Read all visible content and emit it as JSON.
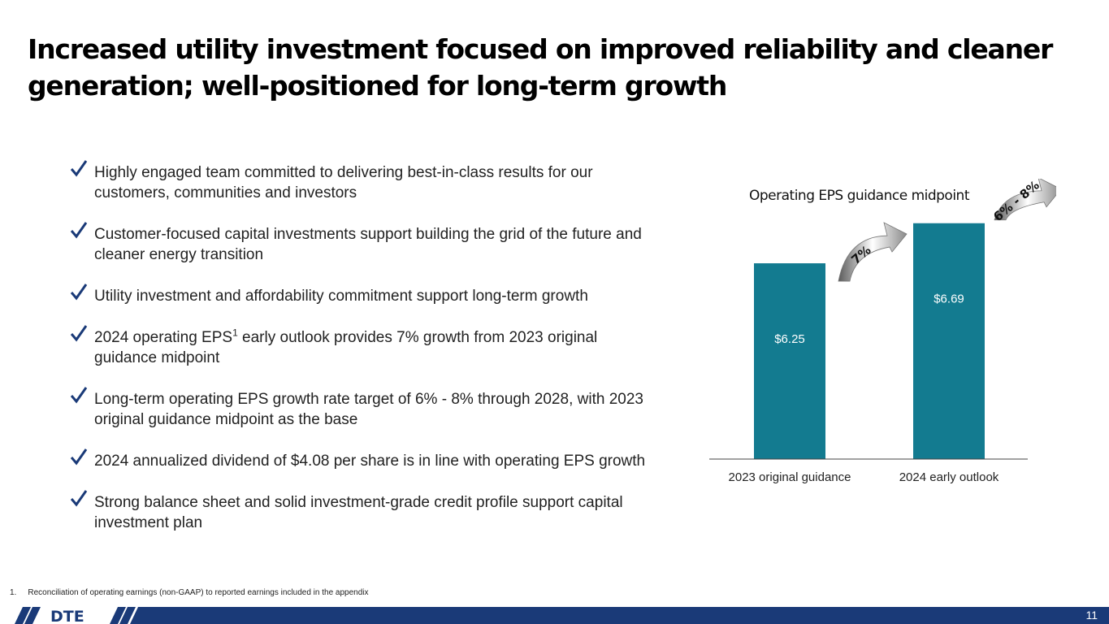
{
  "title": "Increased utility investment focused on improved reliability and cleaner generation; well-positioned for long-term growth",
  "bullets": [
    {
      "text": "Highly engaged team committed to delivering best-in-class results for our customers, communities and investors"
    },
    {
      "text": "Customer-focused capital investments support building the grid of the future and cleaner energy transition"
    },
    {
      "text": "Utility investment and affordability commitment support long-term growth"
    },
    {
      "text_a": "2024 operating EPS",
      "sup": "1",
      "text_b": " early outlook provides 7% growth from 2023 original guidance midpoint"
    },
    {
      "text": "Long-term operating EPS growth rate target of 6% - 8% through 2028, with 2023 original guidance midpoint as the base"
    },
    {
      "text": "2024 annualized dividend of $4.08 per share is in line with operating EPS growth"
    },
    {
      "text": "Strong balance sheet and solid investment-grade credit profile support capital investment plan"
    }
  ],
  "footnote": {
    "number": "1.",
    "text": "Reconciliation of operating earnings (non-GAAP) to reported earnings included in the appendix"
  },
  "logo_text": "DTE",
  "page_number": "11",
  "colors": {
    "bar": "#137b90",
    "accent_navy": "#1a3a78",
    "check": "#1a3a78"
  },
  "chart_data": {
    "type": "bar",
    "title": "Operating EPS guidance midpoint",
    "categories": [
      "2023 original guidance",
      "2024 early outlook"
    ],
    "values": [
      6.25,
      6.69
    ],
    "data_labels": [
      "$6.25",
      "$6.69"
    ],
    "annotations": [
      "7%",
      "6% - 8%"
    ],
    "ylim": [
      4.1,
      7.0
    ],
    "xlabel": "",
    "ylabel": ""
  }
}
